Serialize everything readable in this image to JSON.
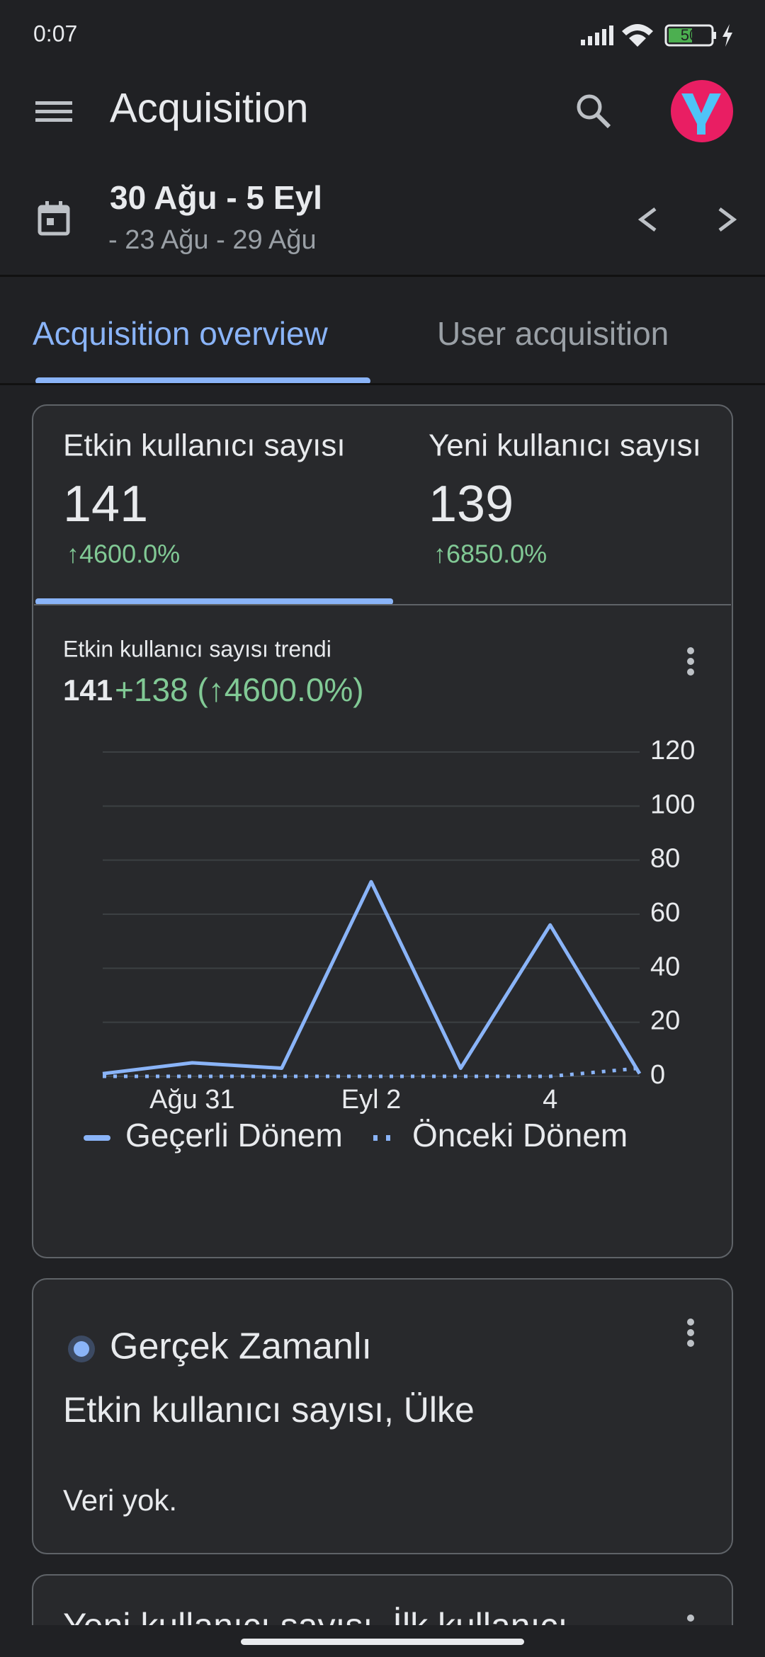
{
  "status": {
    "time": "0:07",
    "battery": "50"
  },
  "header": {
    "title": "Acquisition"
  },
  "date_range": {
    "current": "30 Ağu - 5 Eyl",
    "previous": "- 23 Ağu - 29 Ağu"
  },
  "tabs": [
    "Acquisition overview",
    "User acquisition"
  ],
  "metrics": [
    {
      "label": "Etkin kullanıcı sayısı",
      "value": "141",
      "change": "↑4600.0%"
    },
    {
      "label": "Yeni kullanıcı sayısı",
      "value": "139",
      "change": "↑6850.0%"
    }
  ],
  "chart_data": {
    "type": "line",
    "title": "Etkin kullanıcı sayısı trendi",
    "summary_value": "141",
    "summary_change": "+138 (↑4600.0%)",
    "categories": [
      null,
      "Ağu 31",
      null,
      "Eyl 2",
      null,
      "4",
      null
    ],
    "series": [
      {
        "name": "Geçerli Dönem",
        "color": "#8ab4f8",
        "style": "solid",
        "values": [
          1,
          5,
          3,
          72,
          3,
          56,
          1
        ]
      },
      {
        "name": "Önceki Dönem",
        "color": "#8ab4f8",
        "style": "dotted",
        "values": [
          0,
          0,
          0,
          0,
          0,
          0,
          3
        ]
      }
    ],
    "ylim": [
      0,
      120
    ],
    "yticks": [
      0,
      20,
      40,
      60,
      80,
      100,
      120
    ],
    "grid": true,
    "y_axis_side": "right",
    "legend": "bottom"
  },
  "realtime_card": {
    "badge": "Gerçek Zamanlı",
    "title": "Etkin kullanıcı sayısı, Ülke",
    "empty": "Veri yok."
  },
  "next_card": {
    "title": "Yeni kullanıcı sayısı, İlk kullanıcı"
  }
}
